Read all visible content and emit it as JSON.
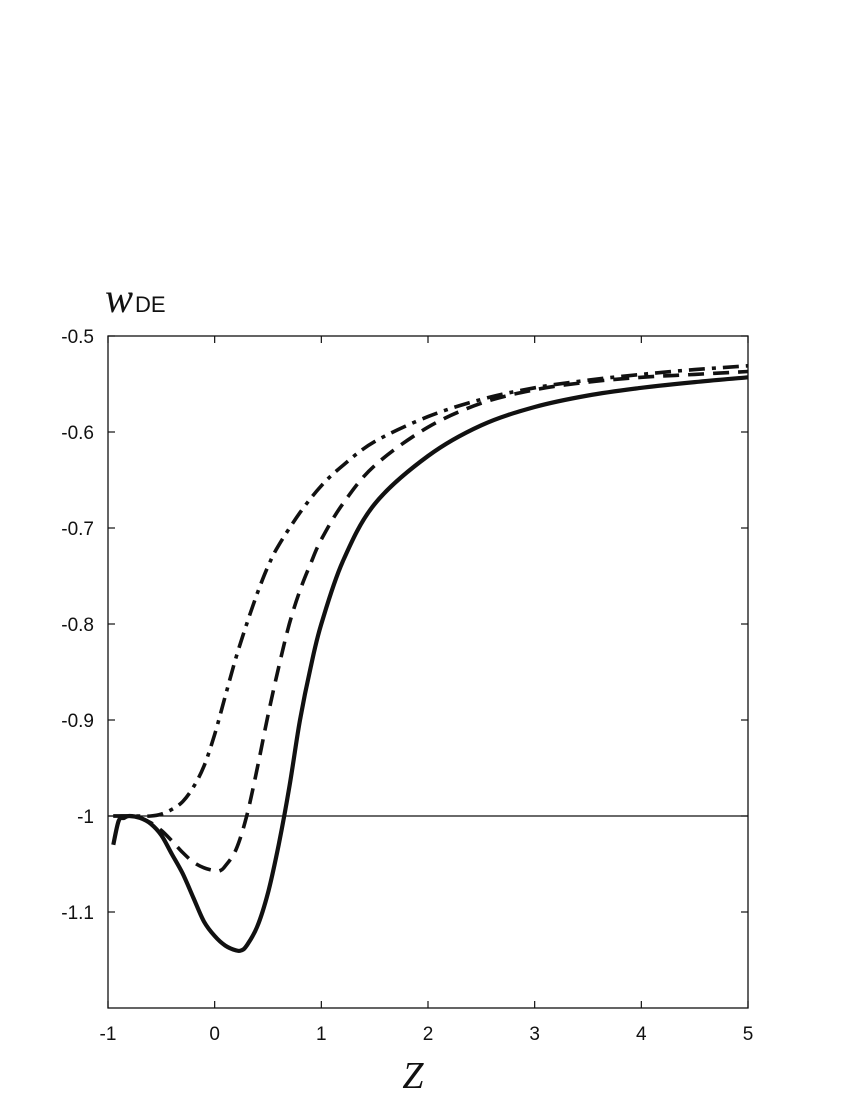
{
  "chart_data": {
    "type": "line",
    "title": "",
    "xlabel": "Z",
    "ylabel": {
      "main": "w",
      "sub": "DE"
    },
    "xlim": [
      -1,
      5
    ],
    "ylim": [
      -1.2,
      -0.5
    ],
    "xticks": [
      -1,
      0,
      1,
      2,
      3,
      4,
      5
    ],
    "xtick_labels": [
      "-1",
      "0",
      "1",
      "2",
      "3",
      "4",
      "5"
    ],
    "yticks": [
      -0.5,
      -0.6,
      -0.7,
      -0.8,
      -0.9,
      -1.0,
      -1.1
    ],
    "ytick_labels": [
      "-0.5",
      "-0.6",
      "-0.7",
      "-0.8",
      "-0.9",
      "-1",
      "-1.1"
    ],
    "reference_line": {
      "y": -1.0,
      "style": "solid-thin"
    },
    "grid": false,
    "legend": "none",
    "series": [
      {
        "style": "solid",
        "color": "#111111",
        "x": [
          -0.95,
          -0.9,
          -0.85,
          -0.8,
          -0.7,
          -0.6,
          -0.5,
          -0.4,
          -0.3,
          -0.2,
          -0.1,
          0.0,
          0.1,
          0.2,
          0.25,
          0.3,
          0.4,
          0.5,
          0.6,
          0.7,
          0.8,
          0.9,
          1.0,
          1.2,
          1.5,
          2.0,
          2.5,
          3.0,
          3.5,
          4.0,
          4.5,
          5.0
        ],
        "y": [
          -1.03,
          -1.005,
          -1.002,
          -1.0,
          -1.002,
          -1.008,
          -1.02,
          -1.04,
          -1.06,
          -1.085,
          -1.11,
          -1.125,
          -1.135,
          -1.14,
          -1.14,
          -1.135,
          -1.115,
          -1.08,
          -1.03,
          -0.97,
          -0.9,
          -0.845,
          -0.8,
          -0.735,
          -0.675,
          -0.625,
          -0.593,
          -0.574,
          -0.562,
          -0.554,
          -0.548,
          -0.543
        ]
      },
      {
        "style": "dashed",
        "color": "#111111",
        "x": [
          -0.95,
          -0.9,
          -0.8,
          -0.7,
          -0.6,
          -0.5,
          -0.4,
          -0.3,
          -0.2,
          -0.1,
          0.0,
          0.05,
          0.1,
          0.2,
          0.3,
          0.4,
          0.5,
          0.6,
          0.7,
          0.8,
          0.9,
          1.0,
          1.2,
          1.5,
          2.0,
          2.5,
          3.0,
          3.5,
          4.0,
          4.5,
          5.0
        ],
        "y": [
          -1.0,
          -1.0,
          -1.0,
          -1.002,
          -1.007,
          -1.015,
          -1.026,
          -1.038,
          -1.048,
          -1.054,
          -1.057,
          -1.057,
          -1.052,
          -1.035,
          -1.0,
          -0.95,
          -0.895,
          -0.845,
          -0.8,
          -0.765,
          -0.737,
          -0.712,
          -0.675,
          -0.635,
          -0.595,
          -0.57,
          -0.556,
          -0.548,
          -0.543,
          -0.54,
          -0.537
        ]
      },
      {
        "style": "dashdot",
        "color": "#111111",
        "x": [
          -0.95,
          -0.8,
          -0.7,
          -0.6,
          -0.5,
          -0.4,
          -0.3,
          -0.2,
          -0.1,
          0.0,
          0.1,
          0.2,
          0.3,
          0.4,
          0.5,
          0.6,
          0.8,
          1.0,
          1.2,
          1.5,
          2.0,
          2.5,
          3.0,
          3.5,
          4.0,
          4.5,
          5.0
        ],
        "y": [
          -1.0,
          -1.0,
          -1.0,
          -1.0,
          -0.998,
          -0.993,
          -0.985,
          -0.97,
          -0.948,
          -0.915,
          -0.875,
          -0.835,
          -0.8,
          -0.768,
          -0.74,
          -0.718,
          -0.684,
          -0.656,
          -0.635,
          -0.61,
          -0.584,
          -0.566,
          -0.554,
          -0.546,
          -0.54,
          -0.535,
          -0.531
        ]
      }
    ]
  }
}
